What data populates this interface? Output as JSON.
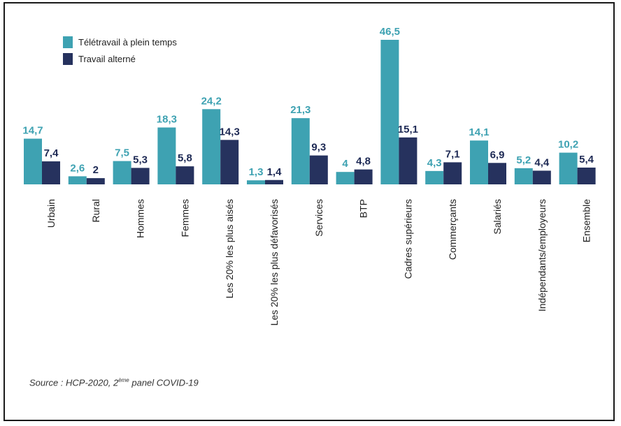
{
  "chart_data": {
    "type": "bar",
    "categories": [
      "Urbain",
      "Rural",
      "Hommes",
      "Femmes",
      "Les 20% les plus aisés",
      "Les 20% les plus défavorisés",
      "Services",
      "BTP",
      "Cadres supérieurs",
      "Commerçants",
      "Salariés",
      "Indépendants/employeurs",
      "Ensemble"
    ],
    "series": [
      {
        "name": "Télétravail à plein temps",
        "values": [
          14.7,
          2.6,
          7.5,
          18.3,
          24.2,
          1.3,
          21.3,
          4,
          46.5,
          4.3,
          14.1,
          5.2,
          10.2
        ],
        "labels": [
          "14,7",
          "2,6",
          "7,5",
          "18,3",
          "24,2",
          "1,3",
          "21,3",
          "4",
          "46,5",
          "4,3",
          "14,1",
          "5,2",
          "10,2"
        ],
        "color": "#3ea2b2",
        "label_color": "#3ea2b2"
      },
      {
        "name": "Travail alterné",
        "values": [
          7.4,
          2,
          5.3,
          5.8,
          14.3,
          1.4,
          9.3,
          4.8,
          15.1,
          7.1,
          6.9,
          4.4,
          5.4
        ],
        "labels": [
          "7,4",
          "2",
          "5,3",
          "5,8",
          "14,3",
          "1,4",
          "9,3",
          "4,8",
          "15,1",
          "7,1",
          "6,9",
          "4,4",
          "5,4"
        ],
        "color": "#26325e",
        "label_color": "#1e2a55"
      }
    ],
    "ylim": [
      0,
      46.5
    ],
    "legend_position": "top-left",
    "grid": false
  },
  "source": {
    "prefix": "Source : HCP-2020, 2",
    "superscript": "ème",
    "suffix": " panel COVID-19"
  }
}
